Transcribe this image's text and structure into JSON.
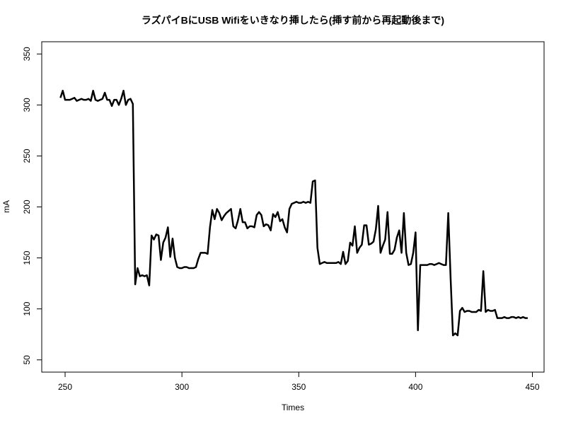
{
  "chart_data": {
    "type": "line",
    "title": "ラズパイBにUSB Wifiをいきなり挿したら(挿す前から再起動後まで)",
    "xlabel": "Times",
    "ylabel": "mA",
    "color": "#000000",
    "x": [
      248,
      249,
      250,
      251,
      252,
      253,
      254,
      255,
      256,
      257,
      258,
      259,
      260,
      261,
      262,
      263,
      264,
      265,
      266,
      267,
      268,
      269,
      270,
      271,
      272,
      273,
      274,
      275,
      276,
      277,
      278,
      279,
      280,
      281,
      282,
      283,
      284,
      285,
      286,
      287,
      288,
      289,
      290,
      291,
      292,
      293,
      294,
      295,
      296,
      297,
      298,
      299,
      300,
      301,
      302,
      303,
      304,
      305,
      306,
      307,
      308,
      309,
      310,
      311,
      312,
      313,
      314,
      315,
      316,
      317,
      318,
      319,
      320,
      321,
      322,
      323,
      324,
      325,
      326,
      327,
      328,
      329,
      330,
      331,
      332,
      333,
      334,
      335,
      336,
      337,
      338,
      339,
      340,
      341,
      342,
      343,
      344,
      345,
      346,
      347,
      348,
      349,
      350,
      351,
      352,
      353,
      354,
      355,
      356,
      357,
      358,
      359,
      360,
      361,
      362,
      363,
      364,
      365,
      366,
      367,
      368,
      369,
      370,
      371,
      372,
      373,
      374,
      375,
      376,
      377,
      378,
      379,
      380,
      381,
      382,
      383,
      384,
      385,
      386,
      387,
      388,
      389,
      390,
      391,
      392,
      393,
      394,
      395,
      396,
      397,
      398,
      399,
      400,
      401,
      402,
      403,
      404,
      405,
      406,
      407,
      408,
      409,
      410,
      411,
      412,
      413,
      414,
      415,
      416,
      417,
      418,
      419,
      420,
      421,
      422,
      423,
      424,
      425,
      426,
      427,
      428,
      429,
      430,
      431,
      432,
      433,
      434,
      435,
      436,
      437,
      438,
      439,
      440,
      441,
      442,
      443,
      444,
      445,
      446,
      447,
      448
    ],
    "values": [
      307,
      314,
      305,
      305,
      305,
      306,
      307,
      304,
      305,
      306,
      305,
      305,
      306,
      304,
      314,
      305,
      304,
      305,
      306,
      312,
      305,
      305,
      299,
      305,
      305,
      300,
      306,
      314,
      300,
      305,
      306,
      301,
      124,
      140,
      132,
      133,
      132,
      133,
      123,
      172,
      168,
      173,
      172,
      148,
      165,
      170,
      180,
      151,
      169,
      150,
      141,
      140,
      140,
      141,
      141,
      140,
      140,
      140,
      141,
      149,
      155,
      155,
      155,
      154,
      180,
      197,
      188,
      198,
      194,
      187,
      191,
      194,
      196,
      198,
      181,
      179,
      187,
      198,
      185,
      185,
      179,
      181,
      181,
      180,
      192,
      195,
      192,
      181,
      183,
      182,
      177,
      193,
      190,
      195,
      186,
      188,
      180,
      175,
      198,
      203,
      204,
      205,
      204,
      204,
      205,
      204,
      205,
      204,
      225,
      226,
      160,
      144,
      145,
      146,
      145,
      145,
      145,
      145,
      145,
      146,
      144,
      156,
      144,
      147,
      165,
      162,
      181,
      155,
      160,
      163,
      182,
      182,
      163,
      164,
      166,
      178,
      201,
      155,
      162,
      168,
      195,
      154,
      154,
      158,
      170,
      177,
      155,
      194,
      155,
      143,
      144,
      155,
      175,
      79,
      143,
      143,
      143,
      143,
      144,
      144,
      143,
      144,
      145,
      144,
      143,
      143,
      194,
      130,
      74,
      76,
      74,
      98,
      101,
      97,
      98,
      98,
      97,
      97,
      97,
      99,
      98,
      137,
      97,
      99,
      98,
      98,
      99,
      91,
      91,
      91,
      92,
      91,
      91,
      92,
      92,
      91,
      92,
      91,
      92,
      91,
      91
    ],
    "xlim": [
      240,
      455
    ],
    "ylim": [
      38,
      362
    ],
    "xticks": [
      250,
      300,
      350,
      400,
      450
    ],
    "yticks": [
      50,
      100,
      150,
      200,
      250,
      300,
      350
    ]
  }
}
